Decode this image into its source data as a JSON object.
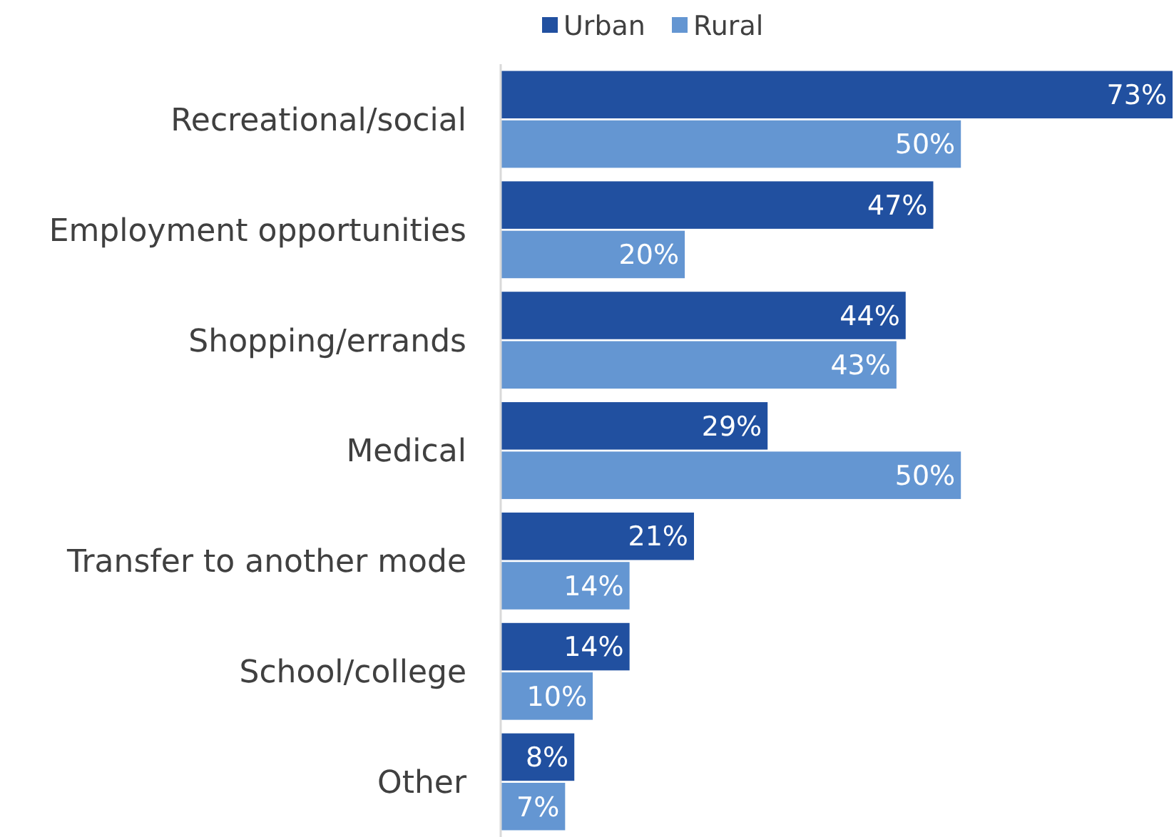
{
  "chart_data": {
    "type": "bar",
    "orientation": "horizontal",
    "legend": "top",
    "categories": [
      "Recreational/social",
      "Employment opportunities",
      "Shopping/errands",
      "Medical",
      "Transfer to another mode",
      "School/college",
      "Other"
    ],
    "series": [
      {
        "name": "Urban",
        "color": "#2150a0",
        "values": [
          73,
          47,
          44,
          29,
          21,
          14,
          8
        ],
        "value_labels": [
          "73%",
          "47%",
          "44%",
          "29%",
          "21%",
          "14%",
          "8%"
        ]
      },
      {
        "name": "Rural",
        "color": "#6496d2",
        "values": [
          50,
          20,
          43,
          50,
          14,
          10,
          7
        ],
        "value_labels": [
          "50%",
          "20%",
          "43%",
          "50%",
          "14%",
          "10%",
          "7%"
        ]
      }
    ]
  }
}
